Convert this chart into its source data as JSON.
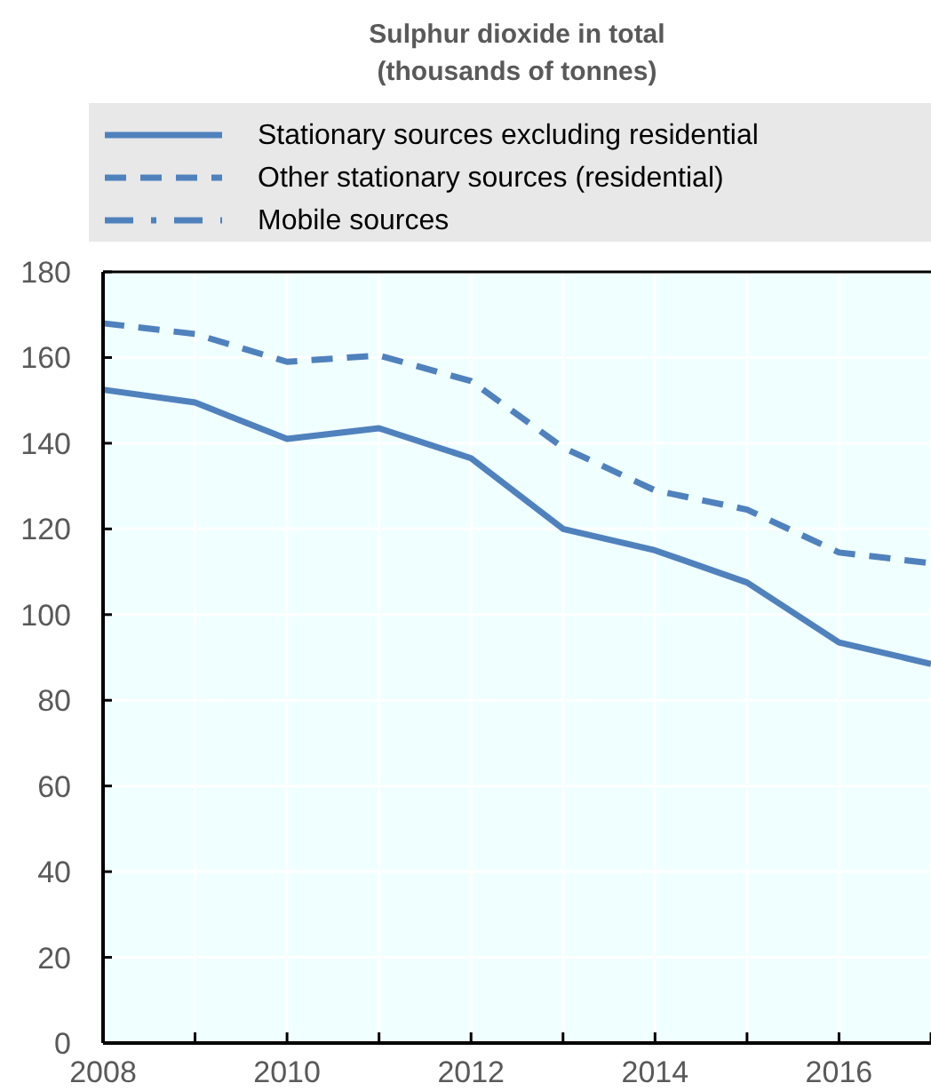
{
  "chart_data": {
    "type": "line",
    "title": "Sulphur dioxide in total\n(thousands of tonnes)",
    "x": [
      2008,
      2009,
      2010,
      2011,
      2012,
      2013,
      2014,
      2015,
      2016,
      2017
    ],
    "series": [
      {
        "name": "Stationary sources excluding residential",
        "color": "#4f81bd",
        "line_style": "solid",
        "values": [
          152.5,
          149.5,
          141,
          143.5,
          136.5,
          120,
          115,
          107.5,
          93.5,
          88.5
        ]
      },
      {
        "name": "Other stationary sources (residential)",
        "color": "#4f81bd",
        "line_style": "dashed",
        "values": [
          168,
          165.5,
          159,
          160.5,
          154.5,
          139,
          129,
          124.5,
          114.5,
          112
        ]
      },
      {
        "name": "Mobile sources",
        "color": "#4f81bd",
        "line_style": "dashdot",
        "values": [
          null,
          null,
          null,
          null,
          null,
          null,
          null,
          null,
          null,
          null
        ]
      }
    ],
    "xlim": [
      2008,
      2017
    ],
    "xticks": [
      2008,
      {
        "value": 2009,
        "label": null
      },
      2010,
      {
        "value": 2011,
        "label": null
      },
      2012,
      {
        "value": 2013,
        "label": null
      },
      2014,
      {
        "value": 2015,
        "label": null
      },
      2016,
      {
        "value": 2017,
        "label": null
      }
    ],
    "ylim": [
      0,
      180
    ],
    "yticks": [
      0,
      20,
      40,
      60,
      80,
      100,
      120,
      140,
      160,
      180
    ],
    "grid": true,
    "legend": "top",
    "marker": "none"
  }
}
